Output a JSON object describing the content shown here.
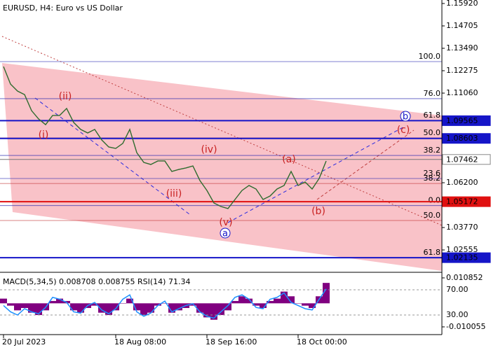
{
  "chart_data": {
    "type": "line",
    "title": "EURUSD, H4:  Euro vs US Dollar",
    "color": "#2e6b2e",
    "categories": [
      "20 Jul 2023",
      null,
      null,
      null,
      null,
      null,
      null,
      null,
      null,
      null,
      null,
      null,
      null,
      null,
      null,
      null,
      "18 Aug 08:00",
      null,
      null,
      null,
      null,
      null,
      null,
      null,
      null,
      null,
      null,
      null,
      null,
      "18 Sep 16:00",
      null,
      null,
      null,
      null,
      null,
      null,
      null,
      null,
      null,
      null,
      null,
      null,
      "18 Oct 00:00",
      null,
      null,
      null,
      null
    ],
    "values": [
      1.125,
      1.1155,
      1.1117,
      1.1098,
      1.1011,
      1.0966,
      1.0935,
      1.0985,
      1.0985,
      1.1023,
      1.0947,
      1.0909,
      1.089,
      1.0909,
      1.0852,
      1.0814,
      1.0806,
      1.0833,
      1.0909,
      1.0783,
      1.073,
      1.0719,
      1.0738,
      1.0738,
      1.0681,
      1.0692,
      1.07,
      1.0711,
      1.0632,
      1.0578,
      1.051,
      1.0491,
      1.048,
      1.0529,
      1.0578,
      1.0605,
      1.0586,
      1.0529,
      1.0548,
      1.0586,
      1.0605,
      1.0681,
      1.0605,
      1.0624,
      1.0586,
      1.0643,
      1.0738
    ],
    "ylim": [
      1.0138,
      1.1611
    ],
    "yticks": [
      {
        "value": 1.1592,
        "label": "1.15920"
      },
      {
        "value": 1.14705,
        "label": "1.14705"
      },
      {
        "value": 1.1349,
        "label": "1.13490"
      },
      {
        "value": 1.12275,
        "label": "1.12275"
      },
      {
        "value": 1.1106,
        "label": "1.11060"
      },
      {
        "value": 1.062,
        "label": "1.06200"
      },
      {
        "value": 1.0377,
        "label": "1.03770"
      },
      {
        "value": 1.02555,
        "label": "1.02555"
      }
    ],
    "price_levels": [
      {
        "value": 1.09565,
        "color": "#1515c8",
        "text_color": "#ffffff"
      },
      {
        "value": 1.08603,
        "color": "#1515c8",
        "text_color": "#ffffff"
      },
      {
        "value": 1.07462,
        "color": "#ffffff",
        "text_color": "#000000"
      },
      {
        "value": 1.05172,
        "color": "#e01010",
        "text_color": "#ffffff"
      },
      {
        "value": 1.02135,
        "color": "#1515c8",
        "text_color": "#ffffff"
      }
    ],
    "fib_levels": [
      {
        "label": "100.0",
        "price": 1.1277,
        "color": "#2a2ab0"
      },
      {
        "label": "76.0",
        "price": 1.1076,
        "color": "#2a2ab0"
      },
      {
        "label": "61.8",
        "price": 1.0958,
        "color": "#2a2ab0"
      },
      {
        "label": "50.0",
        "price": 1.0863,
        "color": "#c03030"
      },
      {
        "label": "38.2",
        "price": 1.0768,
        "color": "#2a2ab0"
      },
      {
        "label": "23.6",
        "price": 1.0643,
        "color": "#2a2ab0"
      },
      {
        "label": "38.2",
        "price": 1.0616,
        "color": "#c03030"
      },
      {
        "label": "0.0",
        "price": 1.0496,
        "color": "#2a2ab0"
      },
      {
        "label": "50.0",
        "price": 1.0415,
        "color": "#c03030"
      },
      {
        "label": "61.8",
        "price": 1.0213,
        "color": "#c03030"
      }
    ],
    "wave_labels": [
      "(i)",
      "(ii)",
      "(iii)",
      "(iv)",
      "(v)",
      "(a)",
      "(b)",
      "(c)",
      "a",
      "b"
    ],
    "indicator": {
      "title": "MACD(5,34,5) 0.008708 0.008755 RSI(14) 71.34",
      "macd_color": "#800080",
      "rsi_color": "#1e90ff",
      "macd": [
        0.002,
        -0.001,
        -0.003,
        -0.002,
        -0.004,
        -0.005,
        -0.003,
        0.001,
        0.002,
        0.001,
        -0.003,
        -0.004,
        -0.002,
        -0.001,
        -0.004,
        -0.005,
        -0.003,
        0,
        0.002,
        -0.003,
        -0.005,
        -0.004,
        -0.001,
        0,
        -0.004,
        -0.003,
        -0.002,
        -0.001,
        -0.004,
        -0.006,
        -0.007,
        -0.005,
        -0.003,
        0.001,
        0.003,
        0.002,
        -0.001,
        -0.002,
        0.001,
        0.002,
        0.005,
        0.003,
        0,
        -0.001,
        -0.002,
        0.003,
        0.008708
      ],
      "rsi": [
        45,
        35,
        30,
        40,
        35,
        32,
        42,
        58,
        55,
        50,
        35,
        33,
        45,
        50,
        38,
        32,
        40,
        55,
        62,
        35,
        28,
        33,
        45,
        52,
        35,
        40,
        45,
        48,
        35,
        28,
        25,
        35,
        45,
        58,
        62,
        55,
        42,
        40,
        55,
        58,
        65,
        50,
        45,
        40,
        38,
        55,
        71.34
      ],
      "macd_ylim": [
        -0.01335,
        0.01204
      ],
      "macd_yticks": [
        0.010852,
        -0.010055
      ],
      "rsi_ylim": [
        -1.1,
        93.3
      ],
      "rsi_yticks": [
        {
          "value": 70,
          "label": "70.00"
        },
        {
          "value": 30,
          "label": "30.00"
        }
      ]
    }
  }
}
